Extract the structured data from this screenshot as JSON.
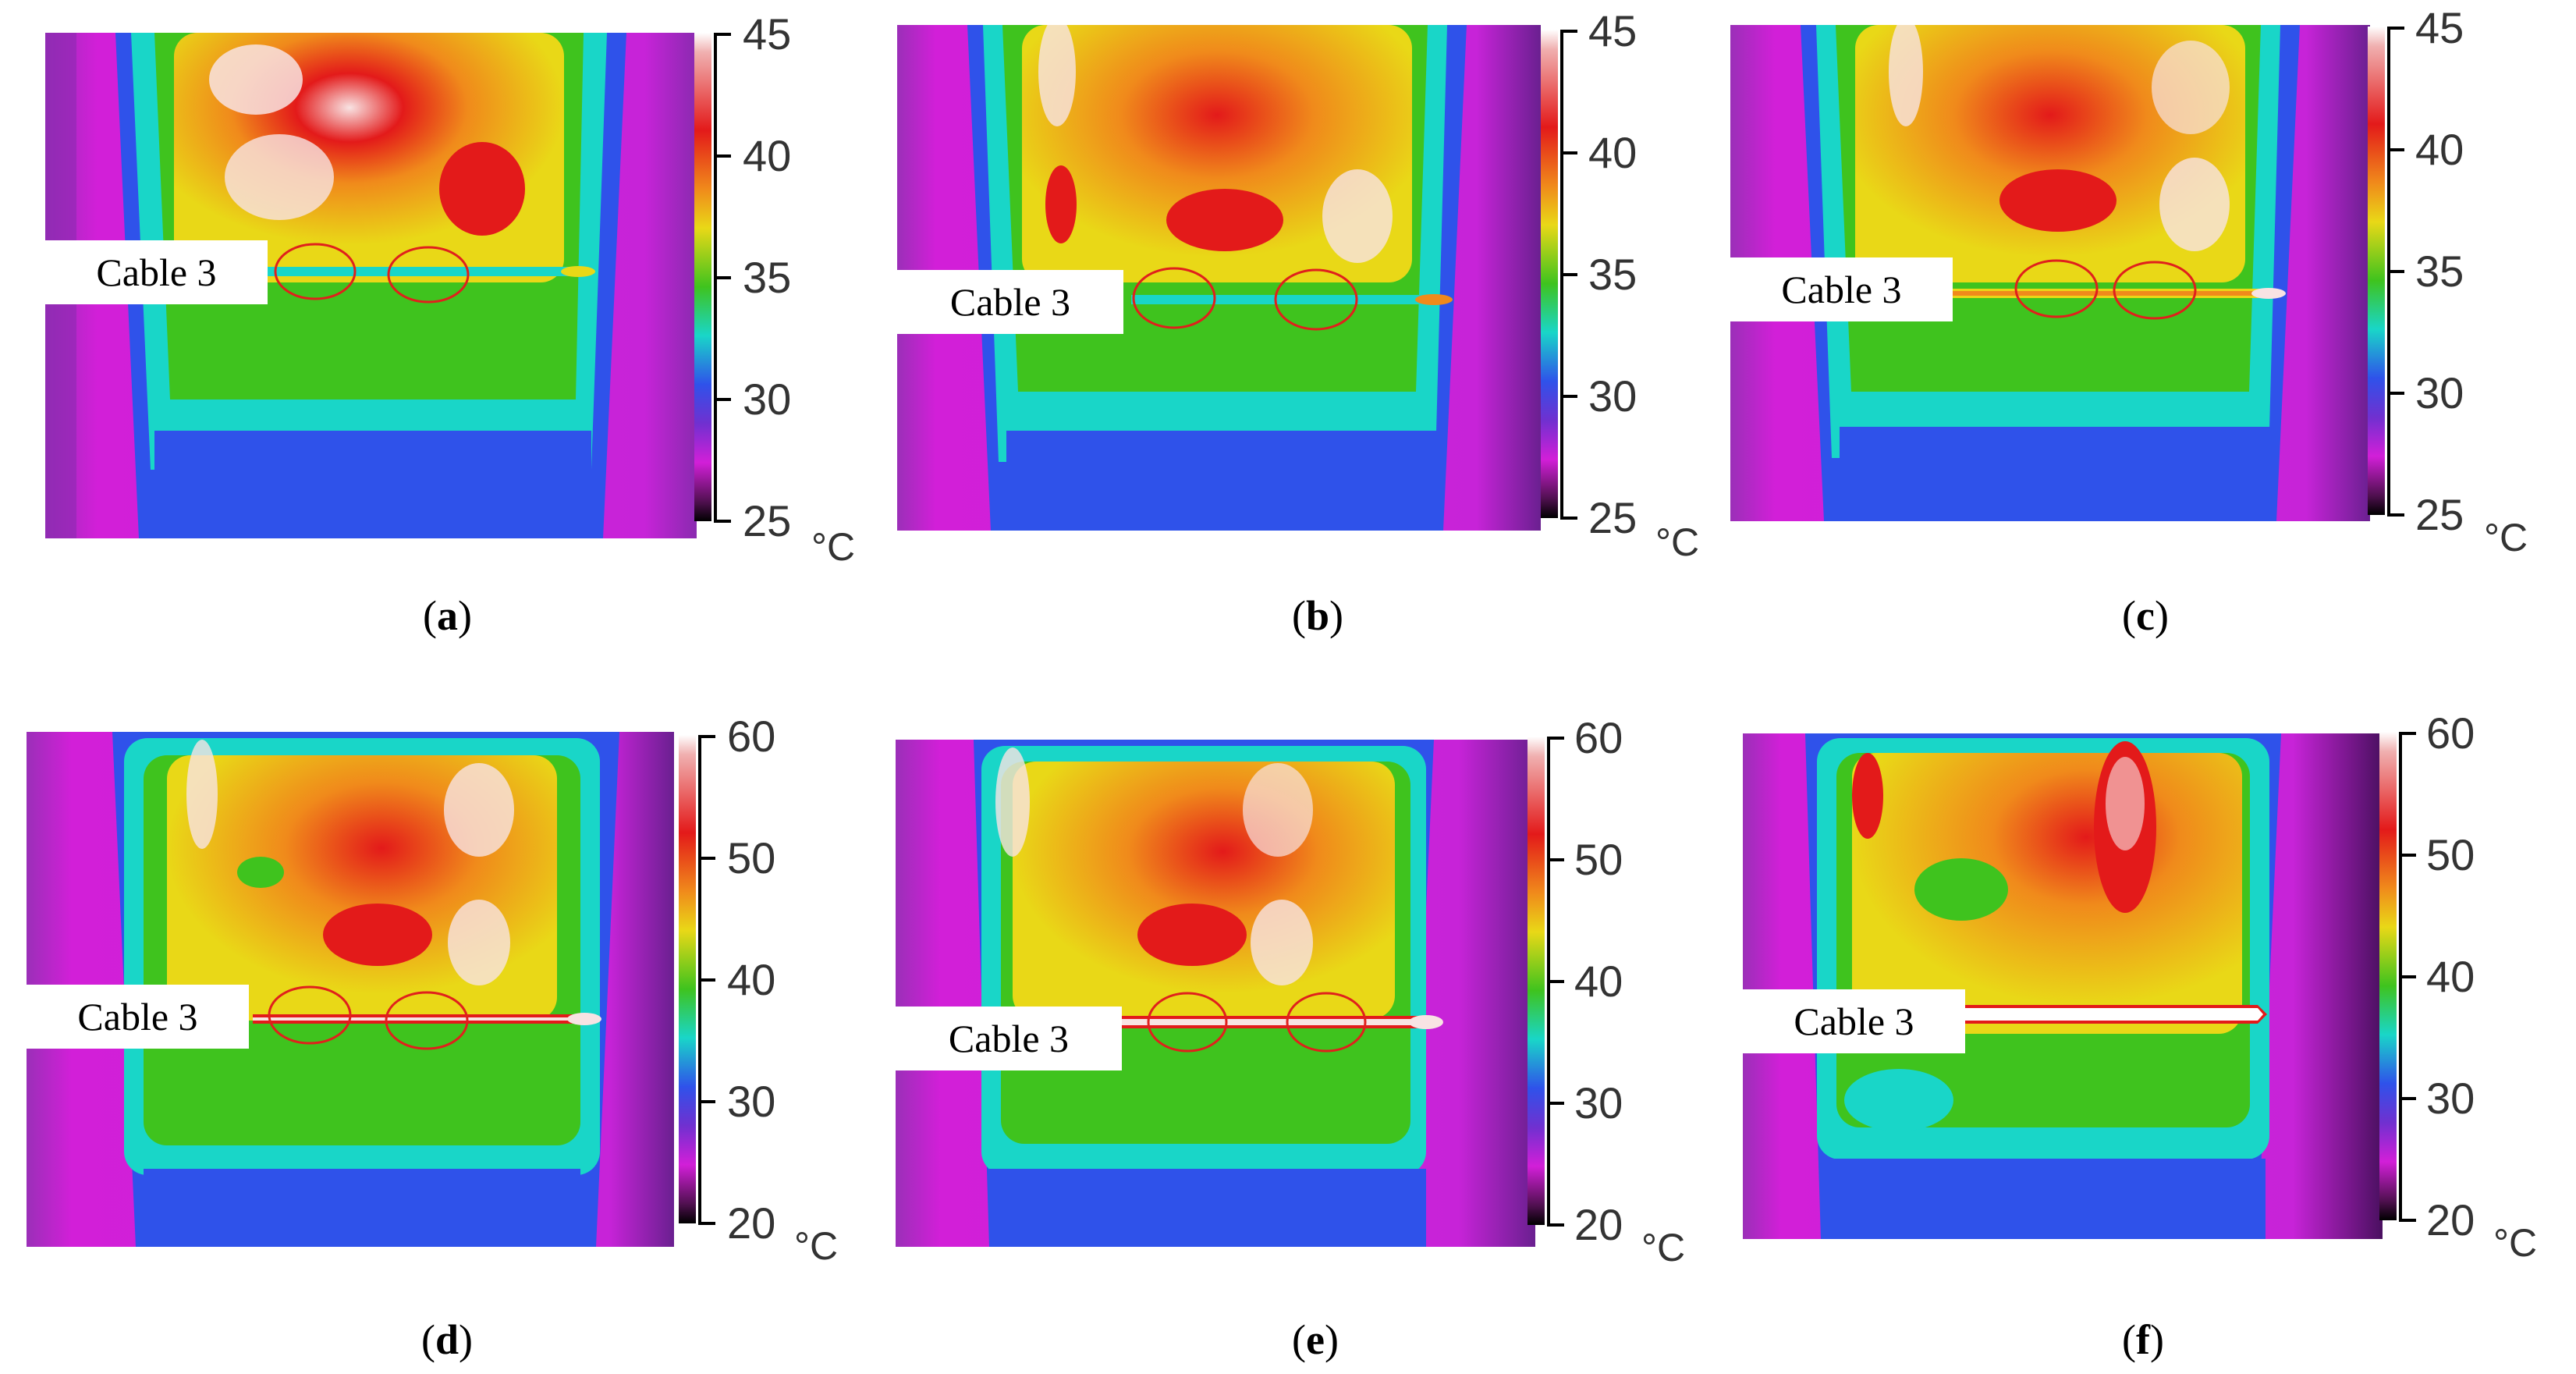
{
  "panels": [
    {
      "id": "a",
      "cable_label": "Cable 3",
      "caption_letter": "a",
      "scale_ticks": [
        "45",
        "40",
        "35",
        "30",
        "25"
      ],
      "unit": "°C",
      "cable_state": "cool"
    },
    {
      "id": "b",
      "cable_label": "Cable 3",
      "caption_letter": "b",
      "scale_ticks": [
        "45",
        "40",
        "35",
        "30",
        "25"
      ],
      "unit": "°C",
      "cable_state": "cool"
    },
    {
      "id": "c",
      "cable_label": "Cable 3",
      "caption_letter": "c",
      "scale_ticks": [
        "45",
        "40",
        "35",
        "30",
        "25"
      ],
      "unit": "°C",
      "cable_state": "warm"
    },
    {
      "id": "d",
      "cable_label": "Cable 3",
      "caption_letter": "d",
      "scale_ticks": [
        "60",
        "50",
        "40",
        "30",
        "20"
      ],
      "unit": "°C",
      "cable_state": "warm"
    },
    {
      "id": "e",
      "cable_label": "Cable 3",
      "caption_letter": "e",
      "scale_ticks": [
        "60",
        "50",
        "40",
        "30",
        "20"
      ],
      "unit": "°C",
      "cable_state": "hot"
    },
    {
      "id": "f",
      "cable_label": "Cable 3",
      "caption_letter": "f",
      "scale_ticks": [
        "60",
        "50",
        "40",
        "30",
        "20"
      ],
      "unit": "°C",
      "cable_state": "white-hot"
    }
  ],
  "colors": {
    "background_magenta": "#d21fd8",
    "cool_blue": "#2f52ea",
    "cyan": "#19d6c8",
    "green": "#3fc31e",
    "yellow": "#e9d817",
    "orange": "#f08a1b",
    "red": "#e31a1a",
    "white_hot": "#f8e3e3",
    "marker_red": "#e0201c"
  }
}
